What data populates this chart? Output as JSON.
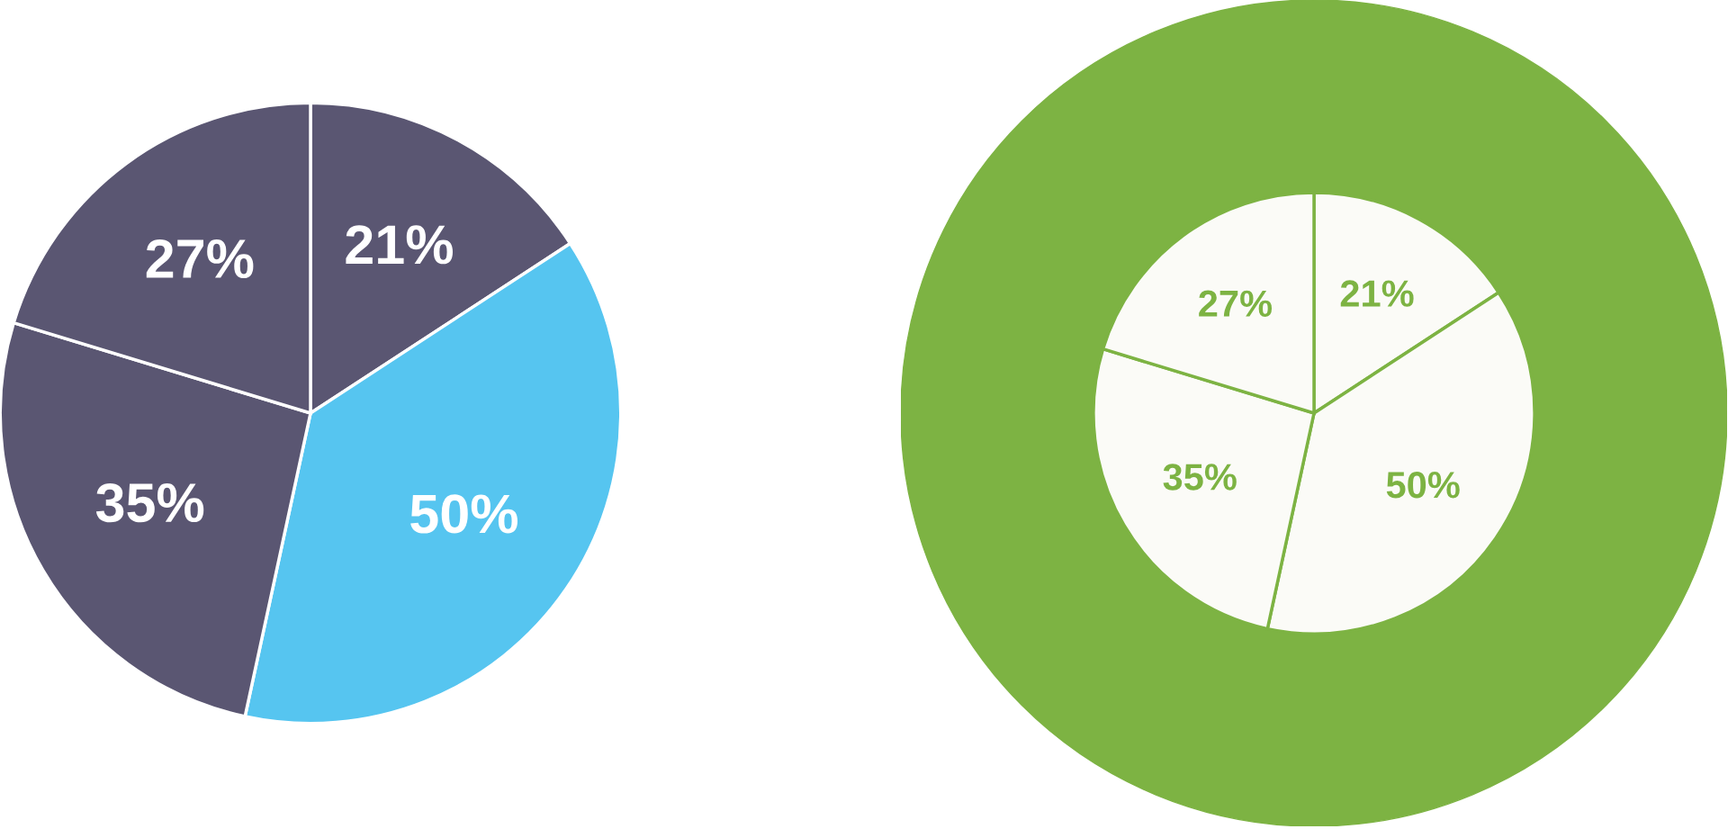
{
  "chart_data": [
    {
      "type": "pie",
      "categories": [
        null,
        null,
        null,
        null
      ],
      "values": [
        21,
        50,
        35,
        27
      ],
      "value_labels": [
        "21%",
        "50%",
        "35%",
        "27%"
      ],
      "colors": [
        "#5a5672",
        "#56c5f0",
        "#5a5672",
        "#5a5672"
      ]
    },
    {
      "type": "pie",
      "categories": [
        null,
        null,
        null,
        null
      ],
      "values": [
        21,
        50,
        35,
        27
      ],
      "value_labels": [
        "21%",
        "50%",
        "35%",
        "27%"
      ],
      "colors": [
        "#fbfbf7",
        "#fbfbf7",
        "#fbfbf7",
        "#fbfbf7"
      ]
    }
  ]
}
